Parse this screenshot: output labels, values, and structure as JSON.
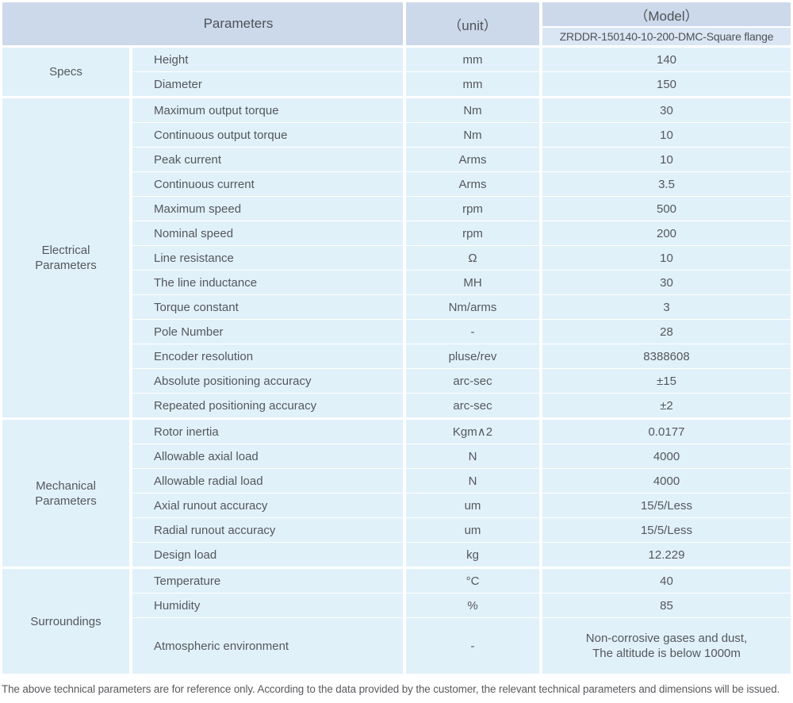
{
  "header": {
    "parameters": "Parameters",
    "unit": "（unit）",
    "model": "（Model）",
    "model_value": "ZRDDR-150140-10-200-DMC-Square flange"
  },
  "groups": [
    {
      "label": "Specs",
      "rows": [
        {
          "name": "Height",
          "unit": "mm",
          "value": "140"
        },
        {
          "name": "Diameter",
          "unit": "mm",
          "value": "150"
        }
      ]
    },
    {
      "label": "Electrical\nParameters",
      "rows": [
        {
          "name": "Maximum output torque",
          "unit": "Nm",
          "value": "30"
        },
        {
          "name": "Continuous output torque",
          "unit": "Nm",
          "value": "10"
        },
        {
          "name": "Peak current",
          "unit": "Arms",
          "value": "10"
        },
        {
          "name": "Continuous current",
          "unit": "Arms",
          "value": "3.5"
        },
        {
          "name": "Maximum speed",
          "unit": "rpm",
          "value": "500"
        },
        {
          "name": "Nominal speed",
          "unit": "rpm",
          "value": "200"
        },
        {
          "name": "Line resistance",
          "unit": "Ω",
          "value": "10"
        },
        {
          "name": "The line inductance",
          "unit": "MH",
          "value": "30"
        },
        {
          "name": "Torque constant",
          "unit": "Nm/arms",
          "value": "3"
        },
        {
          "name": "Pole Number",
          "unit": "-",
          "value": "28"
        },
        {
          "name": "Encoder resolution",
          "unit": "pluse/rev",
          "value": "8388608"
        },
        {
          "name": "Absolute positioning accuracy",
          "unit": "arc-sec",
          "value": "±15"
        },
        {
          "name": "Repeated positioning accuracy",
          "unit": "arc-sec",
          "value": "±2"
        }
      ]
    },
    {
      "label": "Mechanical\nParameters",
      "rows": [
        {
          "name": "Rotor inertia",
          "unit": "Kgm∧2",
          "value": "0.0177"
        },
        {
          "name": "Allowable axial load",
          "unit": "N",
          "value": "4000"
        },
        {
          "name": "Allowable radial load",
          "unit": "N",
          "value": "4000"
        },
        {
          "name": "Axial runout accuracy",
          "unit": "um",
          "value": "15/5/Less"
        },
        {
          "name": "Radial runout accuracy",
          "unit": "um",
          "value": "15/5/Less"
        },
        {
          "name": "Design load",
          "unit": "kg",
          "value": "12.229"
        }
      ]
    },
    {
      "label": "Surroundings",
      "rows": [
        {
          "name": "Temperature",
          "unit": "°C",
          "value": "40"
        },
        {
          "name": "Humidity",
          "unit": "%",
          "value": "85"
        },
        {
          "name": "Atmospheric environment",
          "unit": "-",
          "value": "Non-corrosive gases and dust,\nThe altitude is below 1000m"
        }
      ]
    }
  ],
  "footer": {
    "note": "The above technical parameters are for reference only. According to the data provided by the customer, the relevant technical parameters and dimensions will be issued."
  },
  "colors": {
    "header_bg": "#ccd9ea",
    "subheader_bg": "#dae6f3",
    "cell_bg": "#e1f1fa",
    "text": "#54575c"
  }
}
